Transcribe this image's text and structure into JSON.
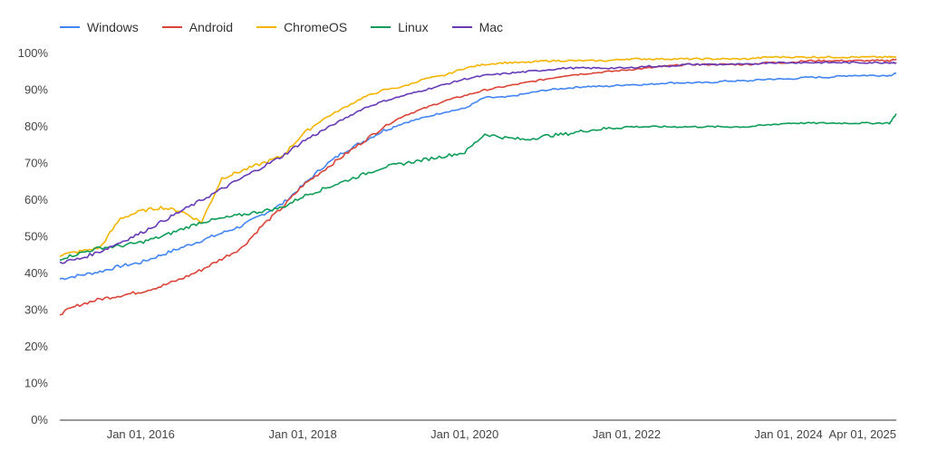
{
  "chart_data": {
    "type": "line",
    "title": "",
    "xlabel": "",
    "ylabel": "",
    "ylim": [
      0,
      100
    ],
    "y_ticks": [
      "0%",
      "10%",
      "20%",
      "30%",
      "40%",
      "50%",
      "60%",
      "70%",
      "80%",
      "90%",
      "100%"
    ],
    "x_ticks": [
      {
        "date": "2016-01-01",
        "label": "Jan 01, 2016"
      },
      {
        "date": "2018-01-01",
        "label": "Jan 01, 2018"
      },
      {
        "date": "2020-01-01",
        "label": "Jan 01, 2020"
      },
      {
        "date": "2022-01-01",
        "label": "Jan 01, 2022"
      },
      {
        "date": "2024-01-01",
        "label": "Jan 01, 2024"
      },
      {
        "date": "2025-04-01",
        "label": "Apr 01, 2025"
      }
    ],
    "x_range": [
      "2015-01-01",
      "2025-05-01"
    ],
    "grid": false,
    "legend_position": "top-left",
    "x": [
      "2015-01-01",
      "2015-04-01",
      "2015-07-01",
      "2015-10-01",
      "2016-01-01",
      "2016-04-01",
      "2016-07-01",
      "2016-10-01",
      "2017-01-01",
      "2017-04-01",
      "2017-07-01",
      "2017-10-01",
      "2018-01-01",
      "2018-04-01",
      "2018-07-01",
      "2018-10-01",
      "2019-01-01",
      "2019-04-01",
      "2019-07-01",
      "2019-10-01",
      "2020-01-01",
      "2020-04-01",
      "2020-07-01",
      "2020-10-01",
      "2021-01-01",
      "2021-04-01",
      "2021-07-01",
      "2021-10-01",
      "2022-01-01",
      "2022-04-01",
      "2022-07-01",
      "2022-10-01",
      "2023-01-01",
      "2023-04-01",
      "2023-07-01",
      "2023-10-01",
      "2024-01-01",
      "2024-04-01",
      "2024-07-01",
      "2024-10-01",
      "2025-01-01",
      "2025-04-01",
      "2025-05-01"
    ],
    "series": [
      {
        "name": "Windows",
        "color": "#4285f4",
        "values": [
          38.5,
          39.5,
          40.5,
          42,
          43,
          45,
          47,
          49,
          51,
          53,
          56,
          59,
          64,
          69,
          73,
          76,
          79,
          81,
          82.5,
          84,
          85,
          88,
          88,
          89,
          90,
          90.5,
          91,
          91,
          91.5,
          91.5,
          92,
          92,
          92,
          92.5,
          92.5,
          93,
          93,
          93.5,
          93.5,
          94,
          94,
          94,
          94.5
        ]
      },
      {
        "name": "Android",
        "color": "#db4437",
        "values": [
          29,
          31.5,
          33,
          34,
          35,
          36.5,
          38.5,
          41,
          44,
          47,
          53,
          58,
          64,
          68,
          72,
          76,
          80,
          83,
          85,
          87,
          88.5,
          90,
          91,
          92,
          93,
          94,
          94.5,
          95,
          95.5,
          96,
          96.5,
          97,
          97,
          97,
          97,
          97.5,
          97.5,
          98,
          98,
          98,
          98,
          98,
          98.5
        ]
      },
      {
        "name": "ChromeOS",
        "color": "#f4b400",
        "values": [
          45,
          46,
          47,
          55,
          57,
          58,
          57,
          54,
          66,
          68,
          70,
          72,
          78,
          82,
          85,
          88,
          90,
          91,
          93,
          94,
          96,
          97,
          97.5,
          97.5,
          98,
          98,
          98,
          98,
          98.5,
          98.5,
          98.5,
          98.5,
          98.5,
          98.5,
          98.5,
          99,
          99,
          99,
          99,
          99,
          99,
          99,
          99
        ]
      },
      {
        "name": "Linux",
        "color": "#0f9d58",
        "values": [
          44,
          45.5,
          47,
          47.5,
          48.5,
          50,
          52,
          54,
          55,
          56,
          57,
          58,
          61,
          63,
          65,
          67,
          69,
          70,
          71,
          72,
          73,
          78,
          77,
          76.5,
          77.5,
          78,
          79,
          79.5,
          80,
          80,
          80,
          80,
          80,
          80,
          80,
          80.5,
          81,
          81,
          81,
          81,
          81,
          81,
          83.5
        ]
      },
      {
        "name": "Mac",
        "color": "#673ab7",
        "values": [
          43,
          44,
          46,
          48.5,
          51,
          54,
          57,
          60,
          63,
          66,
          69,
          72,
          76,
          79,
          82,
          85,
          87,
          88.5,
          90,
          91.5,
          93,
          94,
          94.5,
          95,
          95.5,
          96,
          96,
          96,
          96,
          96.5,
          96.5,
          97,
          97,
          97,
          97,
          97.5,
          97.5,
          97.5,
          97.5,
          97.5,
          97.5,
          97.5,
          97.5
        ]
      }
    ]
  }
}
